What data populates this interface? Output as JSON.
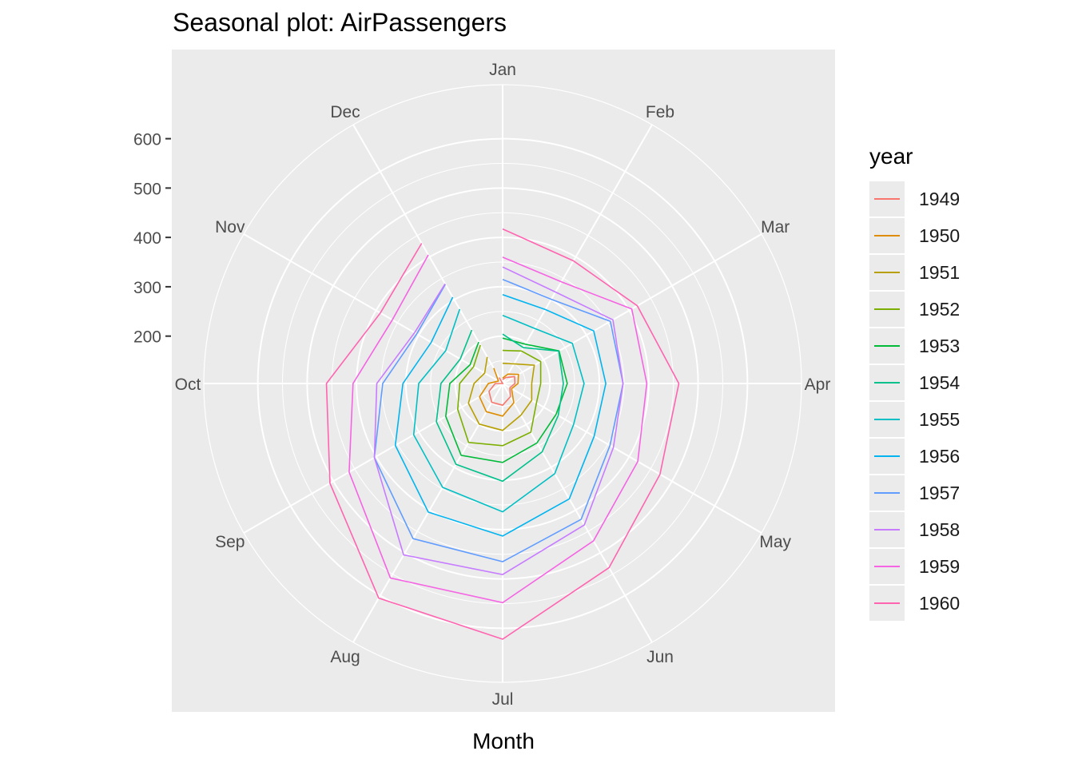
{
  "chart_title": "Seasonal plot: AirPassengers",
  "legend_title": "year",
  "colors": {
    "panel_bg": "#ebebeb",
    "grid": "#ffffff",
    "tick_text": "#4d4d4d"
  },
  "chart_data": {
    "type": "line",
    "coord": "polar",
    "title": "Seasonal plot: AirPassengers",
    "xlabel": "Month",
    "ylabel": "",
    "categories": [
      "Jan",
      "Feb",
      "Mar",
      "Apr",
      "May",
      "Jun",
      "Jul",
      "Aug",
      "Sep",
      "Oct",
      "Nov",
      "Dec"
    ],
    "y_ticks": [
      200,
      300,
      400,
      500,
      600
    ],
    "ylim": [
      104,
      622
    ],
    "grid": true,
    "legend_position": "right",
    "series": [
      {
        "name": "1949",
        "color": "#F8766D",
        "values": [
          112,
          118,
          132,
          129,
          121,
          135,
          148,
          148,
          136,
          119,
          104,
          118
        ]
      },
      {
        "name": "1950",
        "color": "#DE8C00",
        "values": [
          115,
          126,
          141,
          135,
          125,
          149,
          170,
          170,
          158,
          133,
          114,
          140
        ]
      },
      {
        "name": "1951",
        "color": "#B79F00",
        "values": [
          145,
          150,
          178,
          163,
          172,
          178,
          199,
          199,
          184,
          162,
          146,
          166
        ]
      },
      {
        "name": "1952",
        "color": "#7CAE00",
        "values": [
          171,
          180,
          193,
          181,
          183,
          218,
          230,
          242,
          209,
          191,
          172,
          194
        ]
      },
      {
        "name": "1953",
        "color": "#00BA38",
        "values": [
          196,
          196,
          236,
          235,
          229,
          243,
          264,
          272,
          237,
          211,
          180,
          201
        ]
      },
      {
        "name": "1954",
        "color": "#00C08B",
        "values": [
          204,
          188,
          235,
          227,
          234,
          264,
          302,
          293,
          259,
          229,
          203,
          229
        ]
      },
      {
        "name": "1955",
        "color": "#00BFC4",
        "values": [
          242,
          233,
          267,
          269,
          270,
          315,
          364,
          347,
          312,
          274,
          237,
          278
        ]
      },
      {
        "name": "1956",
        "color": "#00B4F0",
        "values": [
          284,
          277,
          317,
          313,
          318,
          374,
          413,
          405,
          355,
          306,
          271,
          306
        ]
      },
      {
        "name": "1957",
        "color": "#619CFF",
        "values": [
          315,
          301,
          356,
          348,
          355,
          422,
          465,
          467,
          404,
          347,
          305,
          336
        ]
      },
      {
        "name": "1958",
        "color": "#C77CFF",
        "values": [
          340,
          318,
          362,
          348,
          363,
          435,
          491,
          505,
          404,
          359,
          310,
          337
        ]
      },
      {
        "name": "1959",
        "color": "#F564E3",
        "values": [
          360,
          342,
          406,
          396,
          420,
          472,
          548,
          559,
          463,
          407,
          362,
          405
        ]
      },
      {
        "name": "1960",
        "color": "#FF64B0",
        "values": [
          417,
          391,
          419,
          461,
          472,
          535,
          622,
          606,
          508,
          461,
          390,
          432
        ]
      }
    ]
  }
}
